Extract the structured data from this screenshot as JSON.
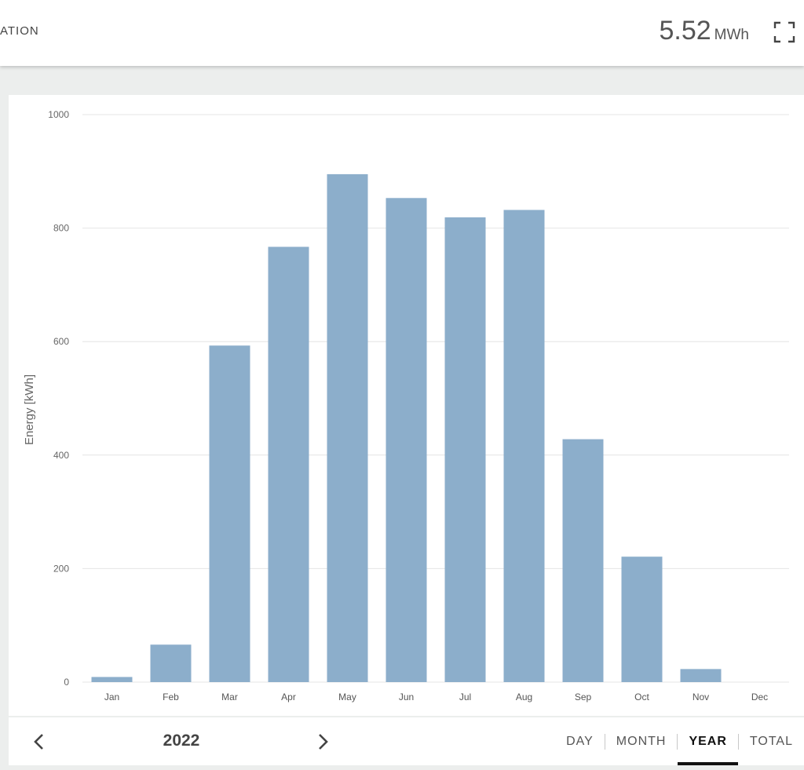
{
  "header": {
    "title": "ATION",
    "total_value": "5.52",
    "total_unit": "MWh",
    "fullscreen_icon": "fullscreen-icon"
  },
  "chart_data": {
    "type": "bar",
    "categories": [
      "Jan",
      "Feb",
      "Mar",
      "Apr",
      "May",
      "Jun",
      "Jul",
      "Aug",
      "Sep",
      "Oct",
      "Nov",
      "Dec"
    ],
    "values": [
      9,
      66,
      593,
      767,
      895,
      853,
      819,
      832,
      428,
      221,
      23,
      0
    ],
    "ylabel": "Energy [kWh]",
    "ylim": [
      0,
      1000
    ],
    "yticks": [
      0,
      200,
      400,
      600,
      800,
      1000
    ],
    "grid": true,
    "bar_color": "#8caecb"
  },
  "footer": {
    "prev_icon": "chevron-left-icon",
    "next_icon": "chevron-right-icon",
    "year": "2022",
    "tabs": [
      {
        "label": "DAY",
        "active": false
      },
      {
        "label": "MONTH",
        "active": false
      },
      {
        "label": "YEAR",
        "active": true
      },
      {
        "label": "TOTAL",
        "active": false
      }
    ]
  },
  "colors": {
    "accent": "#111111",
    "bar": "#8caecb",
    "background": "#eceeed"
  }
}
